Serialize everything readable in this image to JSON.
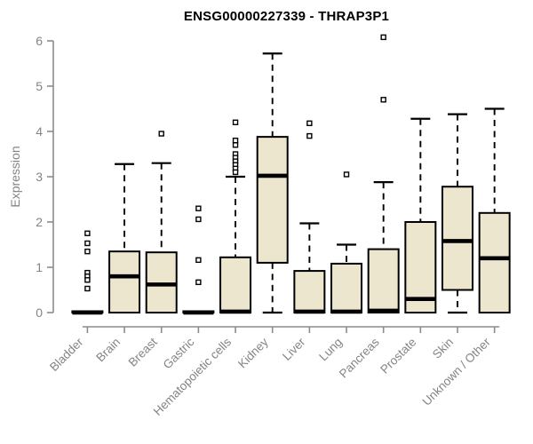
{
  "header": {
    "title": "ENSG00000227339 - THRAP3P1"
  },
  "chart_data": {
    "type": "boxplot",
    "title": "ENSG00000227339 - THRAP3P1",
    "xlabel": "",
    "ylabel": "Expression",
    "ylim": [
      0,
      6
    ],
    "yticks": [
      0,
      1,
      2,
      3,
      4,
      5,
      6
    ],
    "grid": false,
    "legend": "none",
    "categories": [
      "Bladder",
      "Brain",
      "Breast",
      "Gastric",
      "Hematopoietic cells",
      "Kidney",
      "Liver",
      "Lung",
      "Pancreas",
      "Prostate",
      "Skin",
      "Unknown / Other"
    ],
    "series": [
      {
        "category": "Bladder",
        "whisker_low": 0,
        "q1": 0,
        "median": 0,
        "q3": 0.03,
        "whisker_high": 0.03,
        "outliers": [
          1.75,
          1.53,
          1.35,
          0.88,
          0.8,
          0.72,
          0.53
        ]
      },
      {
        "category": "Brain",
        "whisker_low": 0,
        "q1": 0,
        "median": 0.8,
        "q3": 1.35,
        "whisker_high": 3.28,
        "outliers": []
      },
      {
        "category": "Breast",
        "whisker_low": 0,
        "q1": 0,
        "median": 0.62,
        "q3": 1.33,
        "whisker_high": 3.3,
        "outliers": [
          3.95
        ]
      },
      {
        "category": "Gastric",
        "whisker_low": 0,
        "q1": 0,
        "median": 0,
        "q3": 0.03,
        "whisker_high": 0.03,
        "outliers": [
          2.3,
          2.06,
          1.16,
          0.67
        ]
      },
      {
        "category": "Hematopoietic cells",
        "whisker_low": 0,
        "q1": 0,
        "median": 0.02,
        "q3": 1.22,
        "whisker_high": 3.0,
        "outliers": [
          4.2,
          3.8,
          3.7,
          3.5,
          3.42,
          3.34,
          3.26,
          3.18,
          3.1
        ]
      },
      {
        "category": "Kidney",
        "whisker_low": 0,
        "q1": 1.1,
        "median": 3.02,
        "q3": 3.88,
        "whisker_high": 5.72,
        "outliers": []
      },
      {
        "category": "Liver",
        "whisker_low": 0,
        "q1": 0,
        "median": 0.02,
        "q3": 0.92,
        "whisker_high": 1.97,
        "outliers": [
          4.18,
          3.9
        ]
      },
      {
        "category": "Lung",
        "whisker_low": 0,
        "q1": 0,
        "median": 0.02,
        "q3": 1.08,
        "whisker_high": 1.5,
        "outliers": [
          3.05
        ]
      },
      {
        "category": "Pancreas",
        "whisker_low": 0,
        "q1": 0,
        "median": 0.04,
        "q3": 1.4,
        "whisker_high": 2.88,
        "outliers": [
          6.08,
          4.7
        ]
      },
      {
        "category": "Prostate",
        "whisker_low": 0,
        "q1": 0,
        "median": 0.3,
        "q3": 2.0,
        "whisker_high": 4.28,
        "outliers": []
      },
      {
        "category": "Skin",
        "whisker_low": 0,
        "q1": 0.5,
        "median": 1.58,
        "q3": 2.78,
        "whisker_high": 4.38,
        "outliers": []
      },
      {
        "category": "Unknown / Other",
        "whisker_low": 0,
        "q1": 0,
        "median": 1.2,
        "q3": 2.2,
        "whisker_high": 4.5,
        "outliers": []
      }
    ],
    "colors": {
      "box_fill": "#ece6ce",
      "box_border": "#000000",
      "median": "#000000",
      "whisker": "#000000",
      "outlier_stroke": "#000000",
      "axis": "#8c8c8c",
      "tick_label": "#848484",
      "title": "#000000",
      "background": "#ffffff"
    }
  }
}
